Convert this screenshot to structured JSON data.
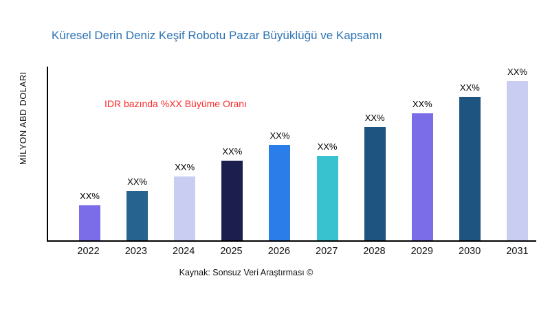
{
  "chart_data": {
    "type": "bar",
    "title": "Küresel Derin Deniz Keşif Robotu Pazar Büyüklüğü ve Kapsamı",
    "ylabel": "MİLYON ABD DOLARI",
    "annotation": "IDR bazında %XX Büyüme Oranı",
    "source": "Kaynak: Sonsuz Veri Araştırması ©",
    "categories": [
      "2022",
      "2023",
      "2024",
      "2025",
      "2026",
      "2027",
      "2028",
      "2029",
      "2030",
      "2031"
    ],
    "values": [
      22,
      31,
      40,
      50,
      60,
      53,
      71,
      80,
      90,
      100
    ],
    "bar_labels": [
      "XX%",
      "XX%",
      "XX%",
      "XX%",
      "XX%",
      "XX%",
      "XX%",
      "XX%",
      "XX%",
      "XX%"
    ],
    "bar_colors": [
      "#7b6ce8",
      "#26648f",
      "#c9cdf2",
      "#1c1f4e",
      "#2b7de9",
      "#38c2cf",
      "#1e5480",
      "#7b6ce8",
      "#1e5480",
      "#c9cdf2"
    ],
    "ylim": [
      0,
      110
    ],
    "grid": false,
    "legend": false,
    "title_color": "#2e74b5",
    "annotation_color": "#fc2b2b"
  }
}
